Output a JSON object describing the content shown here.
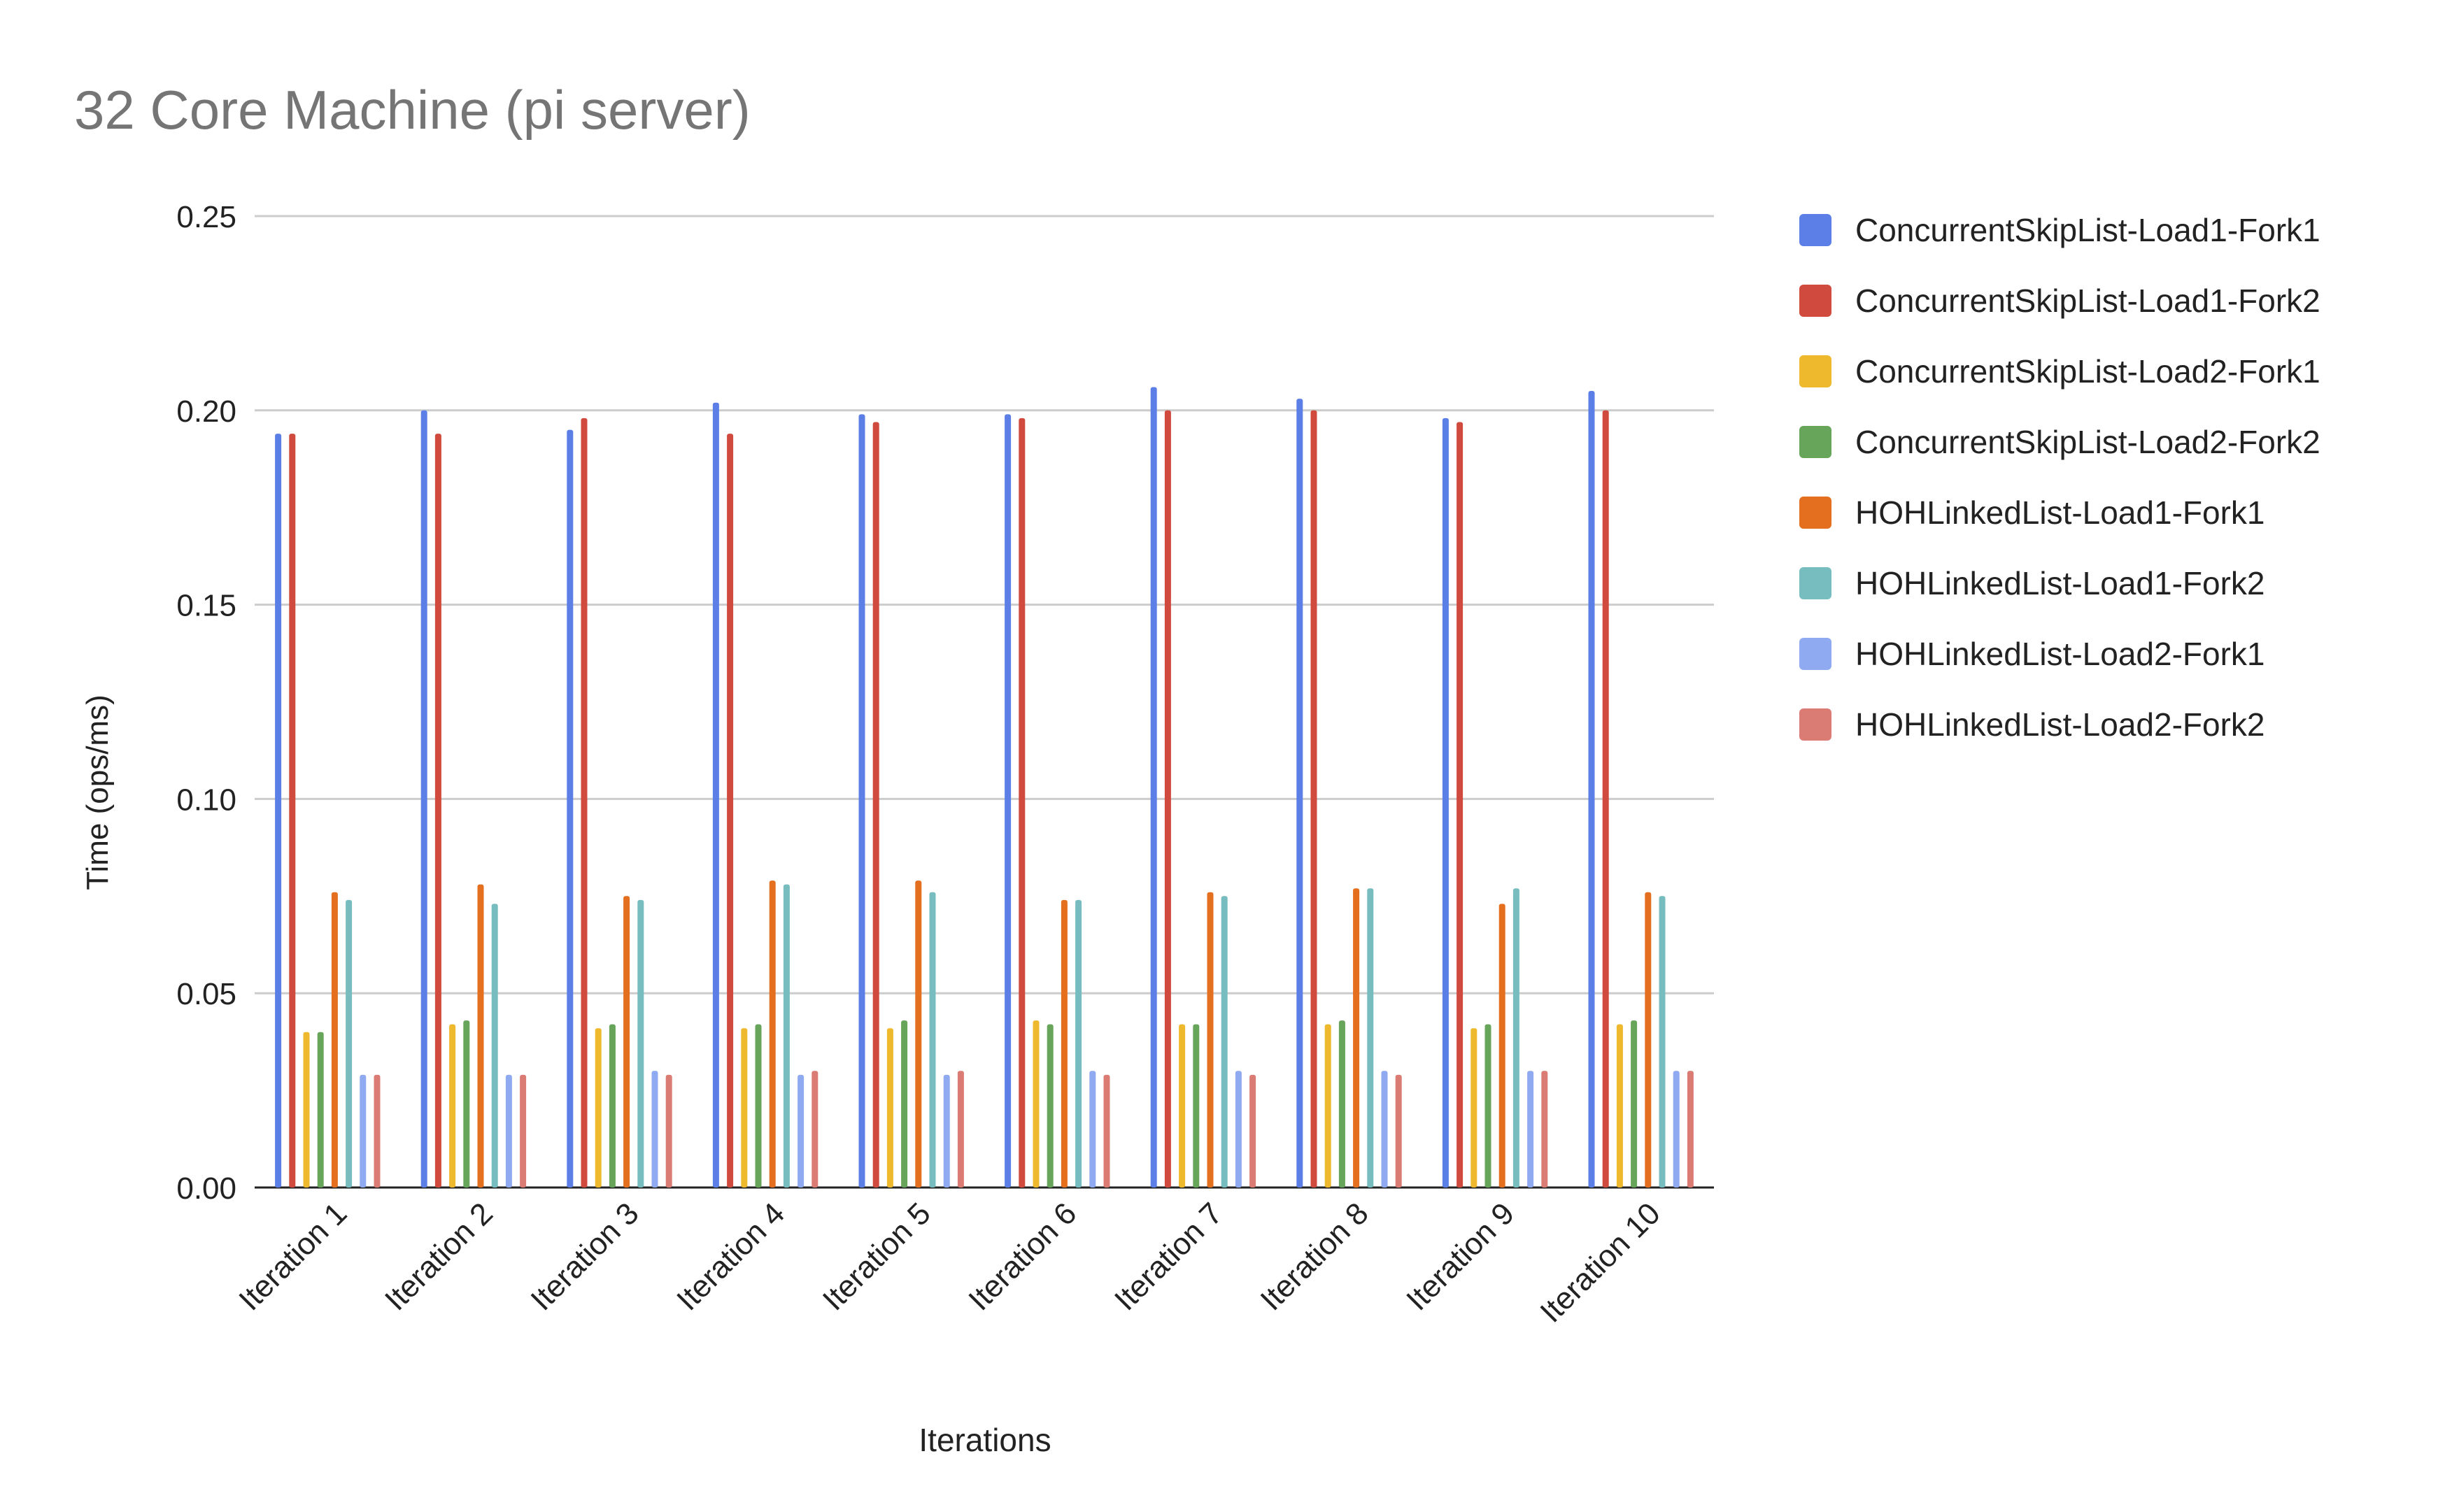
{
  "chart_data": {
    "type": "bar",
    "title": "32 Core Machine (pi server)",
    "xlabel": "Iterations",
    "ylabel": "Time (ops/ms)",
    "ylim": [
      0,
      0.25
    ],
    "yticks": [
      "0.00",
      "0.05",
      "0.10",
      "0.15",
      "0.20",
      "0.25"
    ],
    "grid": true,
    "legend_position": "right",
    "categories": [
      "Iteration 1",
      "Iteration 2",
      "Iteration 3",
      "Iteration 4",
      "Iteration 5",
      "Iteration 6",
      "Iteration 7",
      "Iteration 8",
      "Iteration 9",
      "Iteration 10"
    ],
    "series": [
      {
        "name": "ConcurrentSkipList-Load1-Fork1",
        "color": "#5b7fe6",
        "values": [
          0.194,
          0.2,
          0.195,
          0.202,
          0.199,
          0.199,
          0.206,
          0.203,
          0.198,
          0.205
        ]
      },
      {
        "name": "ConcurrentSkipList-Load1-Fork2",
        "color": "#d04a3d",
        "values": [
          0.194,
          0.194,
          0.198,
          0.194,
          0.197,
          0.198,
          0.2,
          0.2,
          0.197,
          0.2
        ]
      },
      {
        "name": "ConcurrentSkipList-Load2-Fork1",
        "color": "#eeb92d",
        "values": [
          0.04,
          0.042,
          0.041,
          0.041,
          0.041,
          0.043,
          0.042,
          0.042,
          0.041,
          0.042
        ]
      },
      {
        "name": "ConcurrentSkipList-Load2-Fork2",
        "color": "#67a65a",
        "values": [
          0.04,
          0.043,
          0.042,
          0.042,
          0.043,
          0.042,
          0.042,
          0.043,
          0.042,
          0.043
        ]
      },
      {
        "name": "HOHLinkedList-Load1-Fork1",
        "color": "#e46f1e",
        "values": [
          0.076,
          0.078,
          0.075,
          0.079,
          0.079,
          0.074,
          0.076,
          0.077,
          0.073,
          0.076
        ]
      },
      {
        "name": "HOHLinkedList-Load1-Fork2",
        "color": "#77bdbf",
        "values": [
          0.074,
          0.073,
          0.074,
          0.078,
          0.076,
          0.074,
          0.075,
          0.077,
          0.077,
          0.075
        ]
      },
      {
        "name": "HOHLinkedList-Load2-Fork1",
        "color": "#8faaf0",
        "values": [
          0.029,
          0.029,
          0.03,
          0.029,
          0.029,
          0.03,
          0.03,
          0.03,
          0.03,
          0.03
        ]
      },
      {
        "name": "HOHLinkedList-Load2-Fork2",
        "color": "#db7c74",
        "values": [
          0.029,
          0.029,
          0.029,
          0.03,
          0.03,
          0.029,
          0.029,
          0.029,
          0.03,
          0.03
        ]
      }
    ]
  }
}
